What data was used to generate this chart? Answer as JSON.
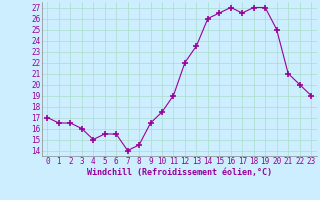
{
  "x": [
    0,
    1,
    2,
    3,
    4,
    5,
    6,
    7,
    8,
    9,
    10,
    11,
    12,
    13,
    14,
    15,
    16,
    17,
    18,
    19,
    20,
    21,
    22,
    23
  ],
  "y": [
    17.0,
    16.5,
    16.5,
    16.0,
    15.0,
    15.5,
    15.5,
    14.0,
    14.5,
    16.5,
    17.5,
    19.0,
    22.0,
    23.5,
    26.0,
    26.5,
    27.0,
    26.5,
    27.0,
    27.0,
    25.0,
    21.0,
    20.0,
    19.0
  ],
  "line_color": "#990099",
  "marker": "+",
  "marker_size": 4,
  "bg_color": "#cceeff",
  "grid_color": "#aaddcc",
  "xlabel": "Windchill (Refroidissement éolien,°C)",
  "xlabel_color": "#990099",
  "ylabel_ticks": [
    14,
    15,
    16,
    17,
    18,
    19,
    20,
    21,
    22,
    23,
    24,
    25,
    26,
    27
  ],
  "xlim": [
    -0.5,
    23.5
  ],
  "ylim": [
    13.5,
    27.5
  ],
  "tick_label_color": "#990099",
  "font_size": 5.5,
  "xlabel_fontsize": 6,
  "marker_color": "#990099"
}
